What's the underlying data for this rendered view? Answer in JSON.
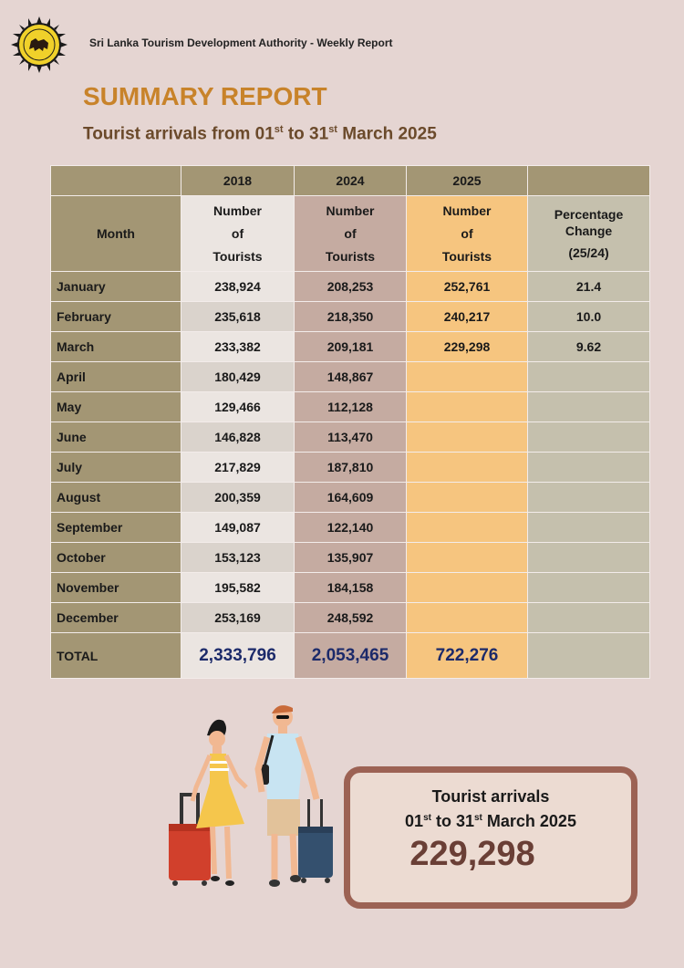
{
  "header": {
    "org": "Sri Lanka Tourism Development Authority - Weekly Report"
  },
  "title": "SUMMARY REPORT",
  "subtitle": {
    "prefix": "Tourist arrivals from 01",
    "sup1": "st",
    "mid": " to 31",
    "sup2": "st",
    "suffix": " March 2025"
  },
  "table": {
    "years": [
      "2018",
      "2024",
      "2025"
    ],
    "month_header": "Month",
    "tourist_header": [
      "Number",
      "of",
      "Tourists"
    ],
    "pct_header": [
      "Percentage",
      "Change",
      "(25/24)"
    ],
    "rows": [
      {
        "month": "January",
        "y2018": "238,924",
        "y2024": "208,253",
        "y2025": "252,761",
        "pct": "21.4"
      },
      {
        "month": "February",
        "y2018": "235,618",
        "y2024": "218,350",
        "y2025": "240,217",
        "pct": "10.0"
      },
      {
        "month": "March",
        "y2018": "233,382",
        "y2024": "209,181",
        "y2025": "229,298",
        "pct": "9.62"
      },
      {
        "month": "April",
        "y2018": "180,429",
        "y2024": "148,867",
        "y2025": "",
        "pct": ""
      },
      {
        "month": "May",
        "y2018": "129,466",
        "y2024": "112,128",
        "y2025": "",
        "pct": ""
      },
      {
        "month": "June",
        "y2018": "146,828",
        "y2024": "113,470",
        "y2025": "",
        "pct": ""
      },
      {
        "month": "July",
        "y2018": "217,829",
        "y2024": "187,810",
        "y2025": "",
        "pct": ""
      },
      {
        "month": "August",
        "y2018": "200,359",
        "y2024": "164,609",
        "y2025": "",
        "pct": ""
      },
      {
        "month": "September",
        "y2018": "149,087",
        "y2024": "122,140",
        "y2025": "",
        "pct": ""
      },
      {
        "month": "October",
        "y2018": "153,123",
        "y2024": "135,907",
        "y2025": "",
        "pct": ""
      },
      {
        "month": "November",
        "y2018": "195,582",
        "y2024": "184,158",
        "y2025": "",
        "pct": ""
      },
      {
        "month": "December",
        "y2018": "253,169",
        "y2024": "248,592",
        "y2025": "",
        "pct": ""
      }
    ],
    "total": {
      "label": "TOTAL",
      "y2018": "2,333,796",
      "y2024": "2,053,465",
      "y2025": "722,276"
    }
  },
  "summary_box": {
    "line1": "Tourist arrivals",
    "line2": {
      "a": "01",
      "sup1": "st",
      "b": " to 31",
      "sup2": "st",
      "c": " March 2025"
    },
    "value": "229,298"
  },
  "colors": {
    "title": "#c8832a",
    "subtitle": "#6b4a2b",
    "month_col": "#a39674",
    "y2025": "#f6c57f",
    "total_numbers": "#1c2a6a",
    "box_border": "#9c6254"
  },
  "icons": [
    "sri-lanka-lion-emblem-icon",
    "travelers-illustration"
  ]
}
